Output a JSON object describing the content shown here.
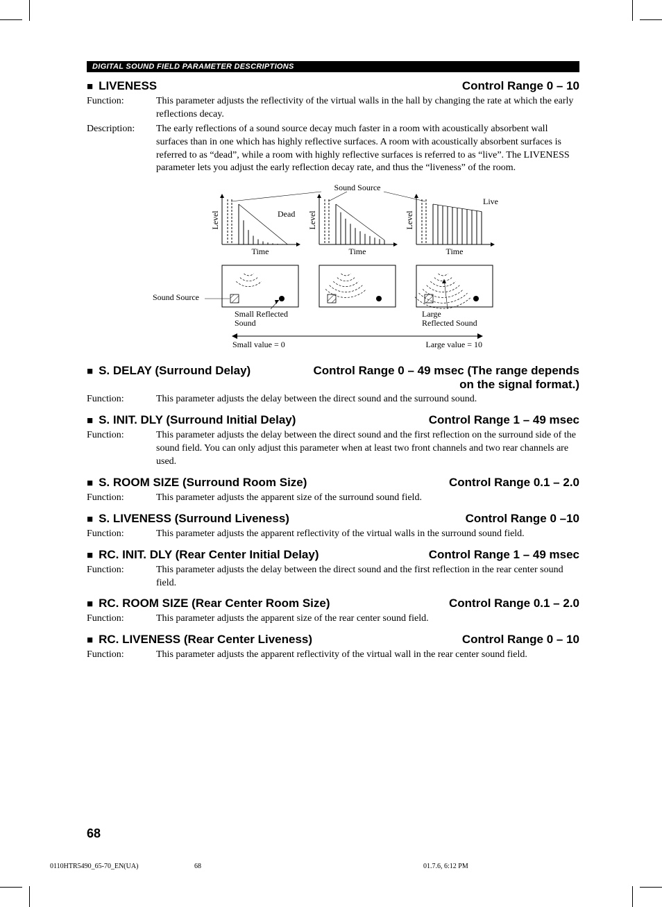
{
  "header_bar": "DIGITAL SOUND FIELD PARAMETER DESCRIPTIONS",
  "page_number": "68",
  "footer": {
    "file": "0110HTR5490_65-70_EN(UA)",
    "page": "68",
    "timestamp": "01.7.6, 6:12 PM"
  },
  "diagram": {
    "top_label": "Sound Source",
    "y_label": "Level",
    "x_label": "Time",
    "panel1_annot": "Dead",
    "panel3_annot": "Live",
    "left_source_label": "Sound Source",
    "panel1_bottom": "Small Reflected\nSound",
    "panel3_bottom": "Large\nReflected Sound",
    "arrow_left": "Small value = 0",
    "arrow_right": "Large value = 10"
  },
  "sections": [
    {
      "title": "LIVENESS",
      "range": "Control Range 0 – 10",
      "rows": [
        {
          "label": "Function:",
          "body": "This parameter adjusts the reflectivity of the virtual walls in the hall by changing the rate at which the early reflections decay."
        },
        {
          "label": "Description:",
          "body": "The early reflections of a sound source decay much faster in a room with acoustically absorbent wall surfaces than in one which has highly reflective surfaces. A room with acoustically absorbent surfaces is referred to as “dead”, while a room with highly reflective surfaces is referred to as “live”. The LIVENESS parameter lets you adjust the early reflection decay rate, and thus the “liveness” of the room."
        }
      ],
      "has_diagram": true
    },
    {
      "title": "S. DELAY (Surround Delay)",
      "range": "Control Range 0 – 49 msec (The range depends on the signal format.)",
      "rows": [
        {
          "label": "Function:",
          "body": "This parameter adjusts the delay between the direct sound and the surround sound."
        }
      ]
    },
    {
      "title": "S. INIT. DLY (Surround Initial Delay)",
      "range": "Control Range 1 – 49 msec",
      "rows": [
        {
          "label": "Function:",
          "body": "This parameter adjusts the delay between the direct sound and the first reflection on the surround side of the sound field. You can only adjust this parameter when at least two front channels and two rear channels are used."
        }
      ]
    },
    {
      "title": "S. ROOM SIZE (Surround Room Size)",
      "range": "Control Range 0.1 – 2.0",
      "rows": [
        {
          "label": "Function:",
          "body": "This parameter adjusts the apparent size of the surround sound field."
        }
      ]
    },
    {
      "title": "S. LIVENESS (Surround Liveness)",
      "range": "Control Range 0 –10",
      "rows": [
        {
          "label": "Function:",
          "body": "This parameter adjusts the apparent reflectivity of the virtual walls in the surround sound field."
        }
      ]
    },
    {
      "title": "RC. INIT. DLY (Rear Center Initial Delay)",
      "range": "Control Range 1 – 49 msec",
      "rows": [
        {
          "label": "Function:",
          "body": "This parameter adjusts the delay between the direct sound and the first reflection in the rear center sound field."
        }
      ]
    },
    {
      "title": "RC. ROOM SIZE (Rear Center Room Size)",
      "range": "Control Range 0.1 – 2.0",
      "rows": [
        {
          "label": "Function:",
          "body": "This parameter adjusts the apparent size of the rear center sound field."
        }
      ]
    },
    {
      "title": "RC. LIVENESS (Rear Center Liveness)",
      "range": "Control Range 0 – 10",
      "rows": [
        {
          "label": "Function:",
          "body": "This parameter adjusts the apparent reflectivity of the virtual wall in the rear center sound field."
        }
      ]
    }
  ]
}
